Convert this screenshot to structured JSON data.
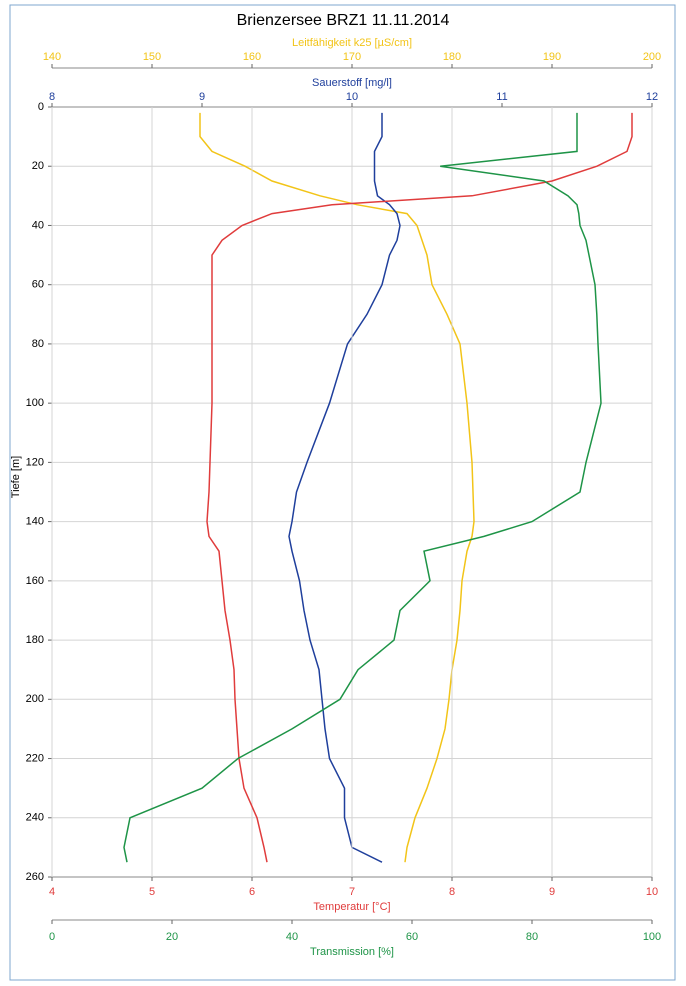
{
  "chart_data": {
    "type": "profile",
    "title": "Brienzersee BRZ1    11.11.2014",
    "ylabel": "Tiefe [m]",
    "ylim": [
      0,
      260
    ],
    "yticks": [
      0,
      20,
      40,
      60,
      80,
      100,
      120,
      140,
      160,
      180,
      200,
      220,
      240,
      260
    ],
    "invert_y": true,
    "grid": true,
    "depth": [
      2,
      10,
      15,
      20,
      25,
      30,
      33,
      36,
      40,
      45,
      50,
      60,
      70,
      80,
      100,
      120,
      130,
      140,
      145,
      150,
      160,
      170,
      180,
      190,
      200,
      210,
      220,
      230,
      240,
      250,
      255
    ],
    "axes": [
      {
        "label": "Leitfähigkeit k25 [µS/cm]",
        "color": "#f2c418",
        "side": "top",
        "grid": false,
        "xlim": [
          140,
          200
        ],
        "xticks": [
          140,
          150,
          160,
          170,
          180,
          190,
          200
        ],
        "values": [
          154.8,
          154.8,
          156,
          159.3,
          162,
          166.8,
          170.5,
          175.5,
          176.5,
          177,
          177.5,
          178,
          179.5,
          180.8,
          181.5,
          182,
          182.1,
          182.2,
          182,
          181.5,
          181,
          180.8,
          180.5,
          180,
          179.7,
          179.3,
          178.5,
          177.5,
          176.3,
          175.5,
          175.3
        ]
      },
      {
        "label": "Sauerstoff [mg/l]",
        "color": "#1f3f9c",
        "side": "top",
        "grid": false,
        "xlim": [
          8,
          12
        ],
        "xticks": [
          8,
          9,
          10,
          11,
          12
        ],
        "values": [
          10.2,
          10.2,
          10.15,
          10.15,
          10.15,
          10.17,
          10.25,
          10.3,
          10.32,
          10.3,
          10.25,
          10.2,
          10.1,
          9.97,
          9.85,
          9.7,
          9.63,
          9.6,
          9.58,
          9.6,
          9.65,
          9.68,
          9.72,
          9.78,
          9.8,
          9.82,
          9.85,
          9.95,
          9.95,
          10.0,
          10.2
        ]
      },
      {
        "label": "Temperatur [°C]",
        "color": "#e03c3c",
        "side": "bottom",
        "grid": true,
        "xlim": [
          4,
          10
        ],
        "xticks": [
          4,
          5,
          6,
          7,
          8,
          9,
          10
        ],
        "values": [
          9.8,
          9.8,
          9.75,
          9.45,
          9.0,
          8.2,
          6.8,
          6.2,
          5.9,
          5.7,
          5.6,
          5.6,
          5.6,
          5.6,
          5.6,
          5.58,
          5.57,
          5.55,
          5.57,
          5.67,
          5.7,
          5.73,
          5.78,
          5.82,
          5.83,
          5.85,
          5.87,
          5.92,
          6.05,
          6.12,
          6.15
        ]
      },
      {
        "label": "Transmission [%]",
        "color": "#1e9447",
        "side": "bottom",
        "grid": false,
        "xlim": [
          0,
          100
        ],
        "xticks": [
          0,
          20,
          40,
          60,
          80,
          100
        ],
        "values": [
          87.5,
          87.5,
          87.5,
          64.7,
          82,
          86,
          87.5,
          87.8,
          88,
          89,
          89.5,
          90.5,
          90.8,
          91,
          91.5,
          89,
          88,
          80,
          72,
          62,
          63,
          58,
          57,
          51,
          48,
          40,
          31,
          25,
          13,
          12,
          12.5
        ]
      }
    ]
  }
}
